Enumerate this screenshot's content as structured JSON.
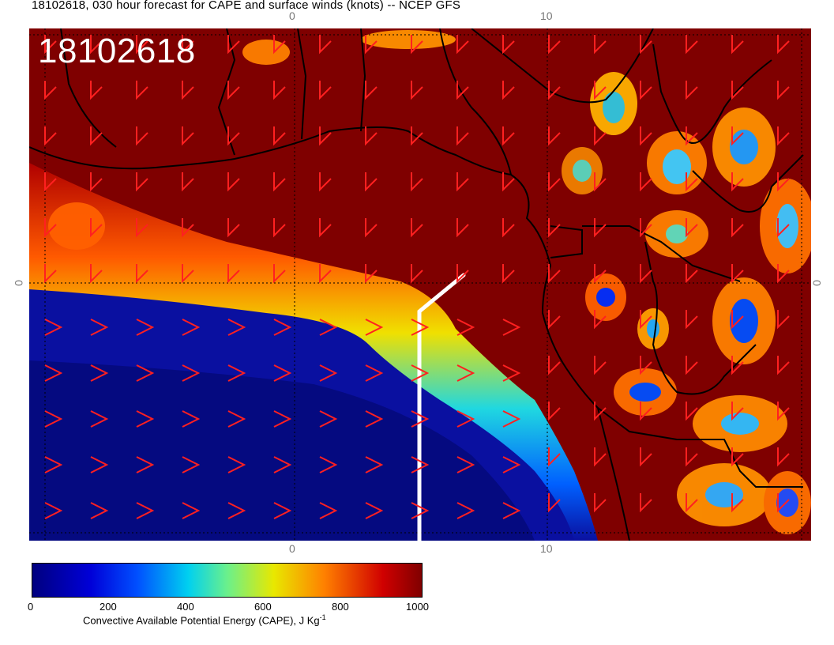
{
  "title": "18102618, 030 hour forecast for CAPE and surface winds (knots) -- NCEP GFS",
  "stamp": "18102618",
  "axis_ticks": {
    "top_lon_0": "0",
    "top_lon_10": "10",
    "bottom_lon_0": "0",
    "bottom_lon_10": "10",
    "left_lat_0": "0",
    "right_lat_0": "0"
  },
  "colorbar": {
    "ticks": [
      "0",
      "200",
      "400",
      "600",
      "800",
      "1000"
    ],
    "title": "Convective Available Potential Energy (CAPE), J Kg",
    "title_superscript": "-1",
    "colors": [
      "#00007f",
      "#0000d8",
      "#0050ff",
      "#00d0f0",
      "#6af08c",
      "#e8e800",
      "#ff8000",
      "#d00000",
      "#800000"
    ]
  },
  "map": {
    "high_cape_color": "#7f0000",
    "low_cape_color": "#0a10a0",
    "wind_barb_color": "#ff2020",
    "coastline_color": "#000000",
    "section_line_color": "#ffffff"
  }
}
